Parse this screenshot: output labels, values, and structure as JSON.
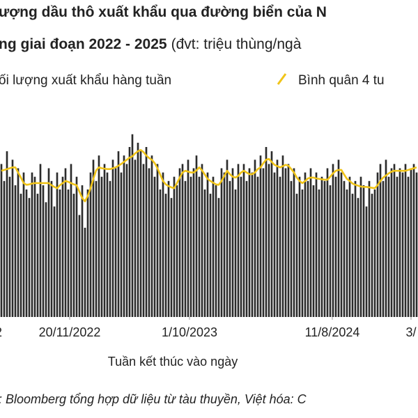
{
  "chart_data": {
    "type": "bar",
    "title": "ượng dầu thô xuất khẩu qua đường biển của N",
    "title_line2": "ng giai đoạn 2022 - 2025",
    "unit_note": "(đvt: triệu thùng/ngà",
    "x_label": "Tuần kết thúc vào ngày",
    "source": ": Bloomberg tổng hợp dữ liệu từ tàu thuyền, Việt hóa: C",
    "xlim": [
      -0.5,
      149.5
    ],
    "xticks": [
      {
        "value": -1,
        "label": "2"
      },
      {
        "value": 24.5,
        "label": "20/11/2022"
      },
      {
        "value": 67.5,
        "label": "1/10/2023"
      },
      {
        "value": 118.75,
        "label": "11/8/2024"
      },
      {
        "value": 147,
        "label": "3/"
      }
    ],
    "ylim": [
      0,
      5
    ],
    "grid": false,
    "series": [
      {
        "name": "ối lượng xuất khẩu hàng tuần",
        "type": "bar",
        "color": "#2b2b2b",
        "values": [
          3.6,
          3.2,
          3.9,
          3.3,
          3.7,
          3.1,
          3.5,
          2.9,
          3.4,
          3.0,
          2.8,
          3.4,
          3.3,
          2.9,
          3.6,
          3.1,
          2.7,
          3.5,
          3.2,
          2.6,
          3.4,
          3.0,
          3.3,
          3.5,
          3.0,
          3.6,
          2.9,
          3.3,
          2.4,
          3.1,
          2.1,
          3.0,
          3.4,
          3.7,
          3.2,
          3.8,
          3.3,
          3.6,
          3.4,
          3.2,
          3.7,
          3.5,
          3.9,
          3.4,
          3.8,
          3.6,
          4.0,
          4.3,
          3.7,
          4.1,
          3.9,
          3.6,
          4.0,
          3.5,
          3.8,
          3.3,
          3.6,
          3.0,
          3.4,
          2.9,
          3.2,
          2.8,
          3.3,
          3.1,
          3.5,
          3.6,
          3.2,
          3.7,
          3.3,
          3.5,
          3.8,
          3.3,
          3.6,
          3.0,
          3.4,
          2.9,
          3.3,
          3.1,
          2.8,
          3.5,
          3.4,
          3.7,
          3.2,
          3.5,
          3.0,
          3.6,
          3.3,
          3.6,
          3.2,
          3.5,
          3.4,
          3.7,
          3.3,
          3.8,
          3.5,
          4.0,
          3.6,
          3.9,
          3.4,
          3.7,
          3.3,
          3.8,
          3.5,
          3.6,
          3.2,
          3.5,
          2.9,
          3.3,
          3.0,
          3.4,
          3.2,
          3.5,
          3.1,
          3.4,
          3.0,
          3.3,
          3.2,
          3.5,
          3.1,
          3.6,
          3.3,
          3.7,
          3.4,
          3.2,
          3.0,
          3.3,
          2.9,
          3.2,
          2.8,
          3.3,
          3.1,
          2.6,
          3.2,
          2.9,
          3.0,
          3.4,
          3.6,
          3.2,
          3.7,
          3.3,
          3.5,
          3.6,
          3.3,
          3.5,
          3.4,
          3.6,
          3.3,
          3.5,
          3.6,
          3.4
        ]
      },
      {
        "name": "Bình quân 4 tu",
        "type": "line",
        "color": "#f0c419",
        "values": [
          3.44,
          3.46,
          3.48,
          3.5,
          3.52,
          3.52,
          3.4,
          3.28,
          3.15,
          3.11,
          3.12,
          3.14,
          3.15,
          3.15,
          3.15,
          3.15,
          3.15,
          3.15,
          3.1,
          3.06,
          3.03,
          3.1,
          3.15,
          3.2,
          3.18,
          3.15,
          3.12,
          3.1,
          2.95,
          2.8,
          2.72,
          2.85,
          3.03,
          3.25,
          3.45,
          3.52,
          3.5,
          3.49,
          3.48,
          3.48,
          3.5,
          3.52,
          3.56,
          3.6,
          3.65,
          3.7,
          3.75,
          3.78,
          3.85,
          3.9,
          3.93,
          3.88,
          3.8,
          3.74,
          3.7,
          3.62,
          3.5,
          3.35,
          3.2,
          3.12,
          3.08,
          3.05,
          3.03,
          3.15,
          3.28,
          3.4,
          3.44,
          3.42,
          3.4,
          3.4,
          3.45,
          3.52,
          3.45,
          3.35,
          3.25,
          3.2,
          3.16,
          3.12,
          3.11,
          3.2,
          3.32,
          3.44,
          3.36,
          3.3,
          3.28,
          3.32,
          3.4,
          3.44,
          3.4,
          3.36,
          3.36,
          3.4,
          3.48,
          3.52,
          3.62,
          3.7,
          3.72,
          3.65,
          3.58,
          3.55,
          3.52,
          3.55,
          3.58,
          3.56,
          3.48,
          3.4,
          3.28,
          3.2,
          3.15,
          3.2,
          3.26,
          3.28,
          3.28,
          3.26,
          3.25,
          3.24,
          3.23,
          3.23,
          3.3,
          3.38,
          3.44,
          3.46,
          3.46,
          3.35,
          3.25,
          3.2,
          3.14,
          3.11,
          3.09,
          3.07,
          3.06,
          3.06,
          3.05,
          3.04,
          3.03,
          3.1,
          3.2,
          3.28,
          3.33,
          3.38,
          3.42,
          3.44,
          3.44,
          3.44,
          3.44,
          3.44,
          3.46,
          3.48,
          3.5,
          3.52
        ]
      }
    ]
  }
}
